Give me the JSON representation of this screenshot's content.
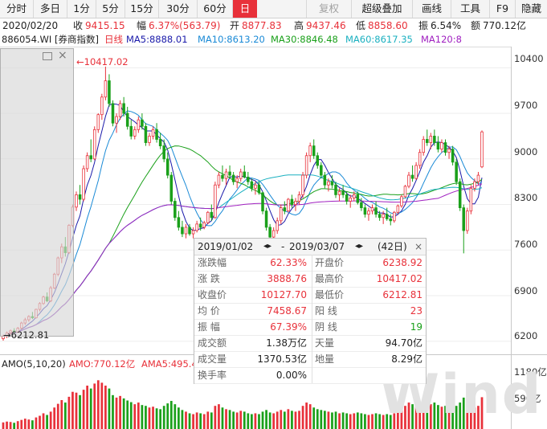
{
  "toolbar": {
    "items": [
      "分时",
      "多日",
      "1分",
      "5分",
      "15分",
      "30分",
      "60分",
      "日",
      "",
      "复权",
      "超级叠加",
      "画线",
      "工具",
      "F9",
      "隐藏"
    ],
    "active": "日",
    "colors": {
      "active_bg": "#e8313a",
      "bg": "#f4f4f4"
    }
  },
  "infobar": {
    "date": "2020/02/20",
    "close_label": "收",
    "close": "9415.15",
    "amp_label": "幅",
    "change": "6.37%(563.79)",
    "open_label": "开",
    "open": "8877.83",
    "high_label": "高",
    "high": "9437.46",
    "low_label": "低",
    "low": "8858.60",
    "swing_label": "振",
    "swing": "6.54%",
    "amount_label": "额",
    "amount": "770.12亿"
  },
  "mabar": {
    "index": "886054.WI [券商指数]",
    "period": "日线",
    "ma5": "MA5:8888.01",
    "ma10": "MA10:8613.20",
    "ma30": "MA30:8846.48",
    "ma60": "MA60:8617.35",
    "ma120": "MA120:8",
    "colors": {
      "ma5": "#1a1aaa",
      "ma10": "#1a8ad6",
      "ma30": "#1aa01a",
      "ma60": "#1ab0c0",
      "ma120": "#a020c0",
      "index": "#222222",
      "period": "#e8313a"
    }
  },
  "price_axis": {
    "labels": [
      "10400",
      "9700",
      "9000",
      "8300",
      "7600",
      "6900",
      "6200"
    ]
  },
  "volume_axis": {
    "labels": [
      "1180亿",
      "590亿"
    ]
  },
  "annotations": {
    "high_mark": "10417.02",
    "low_mark": "6212.81"
  },
  "amobar": {
    "label": "AMO(5,10,20)",
    "amo": "AMO:770.12亿",
    "ama5": "AMA5:495.4",
    "colors": {
      "amo": "#e8313a"
    }
  },
  "statbox": {
    "start": "2019/01/02",
    "end": "2019/03/07",
    "days": "(42日)",
    "rows": [
      {
        "l1": "涨跌幅",
        "v1": "62.33%",
        "c1": "red",
        "l2": "开盘价",
        "v2": "6238.92",
        "c2": "red"
      },
      {
        "l1": "涨 跌",
        "v1": "3888.76",
        "c1": "red",
        "l2": "最高价",
        "v2": "10417.02",
        "c2": "red"
      },
      {
        "l1": "收盘价",
        "v1": "10127.70",
        "c1": "red",
        "l2": "最低价",
        "v2": "6212.81",
        "c2": "red"
      },
      {
        "l1": "均 价",
        "v1": "7458.67",
        "c1": "red",
        "l2": "阳 线",
        "v2": "23",
        "c2": "red"
      },
      {
        "l1": "振 幅",
        "v1": "67.39%",
        "c1": "red",
        "l2": "阴 线",
        "v2": "19",
        "c2": "grn"
      },
      {
        "l1": "成交额",
        "v1": "1.38万亿",
        "c1": "dark",
        "l2": "天量",
        "v2": "94.70亿",
        "c2": "dark"
      },
      {
        "l1": "成交量",
        "v1": "1370.53亿",
        "c1": "dark",
        "l2": "地量",
        "v2": "8.29亿",
        "c2": "dark"
      },
      {
        "l1": "换手率",
        "v1": "0.00%",
        "c1": "dark",
        "l2": "",
        "v2": "",
        "c2": "dark"
      }
    ]
  },
  "watermark": "Wind",
  "chart_data": {
    "type": "candlestick",
    "ylim": [
      6000,
      10700
    ],
    "volume_ylim": [
      0,
      1400
    ],
    "colors": {
      "up": "#e8313a",
      "down": "#1aa01a"
    },
    "candles": [
      [
        6240,
        6300,
        6210,
        6280
      ],
      [
        6280,
        6350,
        6250,
        6330
      ],
      [
        6330,
        6380,
        6300,
        6360
      ],
      [
        6360,
        6400,
        6320,
        6340
      ],
      [
        6340,
        6420,
        6330,
        6400
      ],
      [
        6400,
        6500,
        6380,
        6480
      ],
      [
        6480,
        6560,
        6450,
        6530
      ],
      [
        6530,
        6600,
        6500,
        6580
      ],
      [
        6580,
        6650,
        6540,
        6560
      ],
      [
        6560,
        6700,
        6550,
        6690
      ],
      [
        6690,
        6800,
        6660,
        6780
      ],
      [
        6780,
        6900,
        6760,
        6880
      ],
      [
        6880,
        6950,
        6800,
        6820
      ],
      [
        6820,
        7050,
        6800,
        7020
      ],
      [
        7020,
        7250,
        7000,
        7230
      ],
      [
        7230,
        7500,
        7200,
        7480
      ],
      [
        7480,
        7700,
        7400,
        7650
      ],
      [
        7650,
        7800,
        7500,
        7560
      ],
      [
        7560,
        8000,
        7540,
        7980
      ],
      [
        7980,
        8300,
        7950,
        8260
      ],
      [
        8260,
        8500,
        8200,
        8450
      ],
      [
        8450,
        8600,
        8300,
        8380
      ],
      [
        8380,
        8900,
        8350,
        8850
      ],
      [
        8850,
        9100,
        8800,
        9050
      ],
      [
        9050,
        9300,
        8950,
        9000
      ],
      [
        9000,
        9500,
        8980,
        9450
      ],
      [
        9450,
        9700,
        9400,
        9680
      ],
      [
        9680,
        10000,
        9600,
        9950
      ],
      [
        9950,
        10417,
        9900,
        10200
      ],
      [
        10200,
        10300,
        9800,
        9850
      ],
      [
        9850,
        9900,
        9500,
        9550
      ],
      [
        9550,
        9700,
        9400,
        9650
      ],
      [
        9650,
        9900,
        9600,
        9850
      ],
      [
        9850,
        9950,
        9650,
        9700
      ],
      [
        9700,
        9800,
        9450,
        9500
      ],
      [
        9500,
        9600,
        9300,
        9350
      ],
      [
        9350,
        9500,
        9300,
        9450
      ],
      [
        9450,
        9650,
        9400,
        9600
      ],
      [
        9600,
        9700,
        9450,
        9500
      ],
      [
        9500,
        9550,
        9200,
        9250
      ],
      [
        9250,
        9400,
        9200,
        9350
      ],
      [
        9350,
        9500,
        9300,
        9450
      ],
      [
        9450,
        9550,
        9250,
        9300
      ],
      [
        9300,
        9400,
        9150,
        9200
      ],
      [
        9200,
        9300,
        8950,
        9000
      ],
      [
        9000,
        9100,
        8700,
        8750
      ],
      [
        8750,
        8800,
        8300,
        8350
      ],
      [
        8350,
        8400,
        8050,
        8100
      ],
      [
        8100,
        8200,
        7900,
        7950
      ],
      [
        7950,
        8050,
        7800,
        7850
      ],
      [
        7850,
        8000,
        7780,
        7950
      ],
      [
        7950,
        8000,
        7820,
        7850
      ],
      [
        7850,
        7950,
        7780,
        7900
      ],
      [
        7900,
        8050,
        7870,
        8000
      ],
      [
        8000,
        8100,
        7900,
        7950
      ],
      [
        7950,
        8050,
        7920,
        8020
      ],
      [
        8020,
        8200,
        8000,
        8180
      ],
      [
        8180,
        8300,
        8050,
        8100
      ],
      [
        8100,
        8650,
        8080,
        8600
      ],
      [
        8600,
        8800,
        8550,
        8750
      ],
      [
        8750,
        8900,
        8650,
        8700
      ],
      [
        8700,
        8850,
        8600,
        8800
      ],
      [
        8800,
        8900,
        8700,
        8750
      ],
      [
        8750,
        8800,
        8600,
        8650
      ],
      [
        8650,
        8750,
        8550,
        8700
      ],
      [
        8700,
        8850,
        8650,
        8800
      ],
      [
        8800,
        8900,
        8700,
        8720
      ],
      [
        8720,
        8800,
        8600,
        8650
      ],
      [
        8650,
        8700,
        8500,
        8550
      ],
      [
        8550,
        8650,
        8450,
        8600
      ],
      [
        8600,
        8650,
        8450,
        8480
      ],
      [
        8480,
        8500,
        8150,
        8200
      ],
      [
        8200,
        8250,
        7900,
        7950
      ],
      [
        7950,
        8000,
        7750,
        7800
      ],
      [
        7800,
        7950,
        7700,
        7900
      ],
      [
        7900,
        8100,
        7850,
        8050
      ],
      [
        8050,
        8300,
        8000,
        8250
      ],
      [
        8250,
        8350,
        8150,
        8200
      ],
      [
        8200,
        8400,
        8180,
        8380
      ],
      [
        8380,
        8450,
        8250,
        8300
      ],
      [
        8300,
        8400,
        8200,
        8350
      ],
      [
        8350,
        8500,
        8300,
        8450
      ],
      [
        8450,
        8800,
        8400,
        8750
      ],
      [
        8750,
        9100,
        8700,
        9050
      ],
      [
        9050,
        9250,
        8950,
        9200
      ],
      [
        9200,
        9300,
        9000,
        9050
      ],
      [
        9050,
        9100,
        8850,
        8900
      ],
      [
        8900,
        8950,
        8700,
        8750
      ],
      [
        8750,
        8800,
        8550,
        8600
      ],
      [
        8600,
        8700,
        8500,
        8650
      ],
      [
        8650,
        8750,
        8550,
        8600
      ],
      [
        8600,
        8650,
        8400,
        8450
      ],
      [
        8450,
        8550,
        8350,
        8500
      ],
      [
        8500,
        8600,
        8400,
        8450
      ],
      [
        8450,
        8500,
        8300,
        8350
      ],
      [
        8350,
        8450,
        8250,
        8400
      ],
      [
        8400,
        8500,
        8350,
        8450
      ],
      [
        8450,
        8500,
        8300,
        8330
      ],
      [
        8330,
        8400,
        8200,
        8250
      ],
      [
        8250,
        8300,
        8100,
        8150
      ],
      [
        8150,
        8250,
        8050,
        8200
      ],
      [
        8200,
        8300,
        8150,
        8250
      ],
      [
        8250,
        8350,
        8100,
        8150
      ],
      [
        8150,
        8200,
        8050,
        8100
      ],
      [
        8100,
        8200,
        8000,
        8150
      ],
      [
        8150,
        8250,
        8050,
        8080
      ],
      [
        8080,
        8150,
        7980,
        8050
      ],
      [
        8050,
        8200,
        8020,
        8180
      ],
      [
        8180,
        8300,
        8150,
        8280
      ],
      [
        8280,
        8450,
        8250,
        8420
      ],
      [
        8420,
        8600,
        8400,
        8580
      ],
      [
        8580,
        8800,
        8550,
        8750
      ],
      [
        8750,
        8900,
        8650,
        8700
      ],
      [
        8700,
        8950,
        8680,
        8900
      ],
      [
        8900,
        9150,
        8850,
        9100
      ],
      [
        9100,
        9350,
        9050,
        9300
      ],
      [
        9300,
        9450,
        9200,
        9250
      ],
      [
        9250,
        9400,
        9150,
        9350
      ],
      [
        9350,
        9450,
        9200,
        9250
      ],
      [
        9250,
        9350,
        9100,
        9150
      ],
      [
        9150,
        9300,
        9100,
        9250
      ],
      [
        9250,
        9300,
        9050,
        9100
      ],
      [
        9100,
        9200,
        9000,
        9150
      ],
      [
        9150,
        9200,
        8900,
        8950
      ],
      [
        8950,
        9000,
        8600,
        8650
      ],
      [
        8650,
        8700,
        8200,
        8250
      ],
      [
        8250,
        8300,
        7550,
        7900
      ],
      [
        7900,
        8250,
        7850,
        8200
      ],
      [
        8200,
        8600,
        8150,
        8550
      ],
      [
        8550,
        8700,
        8500,
        8650
      ],
      [
        8650,
        8800,
        8600,
        8750
      ],
      [
        8877.83,
        9437.46,
        8858.6,
        9415.15
      ]
    ],
    "volumes": [
      160,
      180,
      170,
      150,
      190,
      220,
      250,
      230,
      210,
      280,
      320,
      380,
      340,
      420,
      520,
      610,
      700,
      640,
      780,
      900,
      880,
      820,
      950,
      1050,
      980,
      1100,
      1180,
      1120,
      1050,
      980,
      820,
      760,
      800,
      740,
      690,
      650,
      600,
      640,
      580,
      560,
      520,
      540,
      500,
      480,
      560,
      620,
      680,
      600,
      520,
      460,
      420,
      380,
      360,
      400,
      380,
      360,
      420,
      400,
      560,
      600,
      520,
      480,
      460,
      420,
      400,
      440,
      420,
      380,
      360,
      380,
      360,
      420,
      460,
      400,
      380,
      420,
      460,
      420,
      480,
      440,
      420,
      440,
      560,
      640,
      600,
      520,
      480,
      460,
      440,
      420,
      400,
      420,
      380,
      400,
      380,
      360,
      380,
      400,
      380,
      360,
      340,
      360,
      380,
      360,
      340,
      360,
      340,
      380,
      420,
      480,
      560,
      640,
      600,
      560,
      620,
      700,
      680,
      600,
      640,
      580,
      540,
      560,
      520,
      540,
      560,
      640,
      760,
      600,
      560,
      520,
      560,
      770
    ]
  }
}
